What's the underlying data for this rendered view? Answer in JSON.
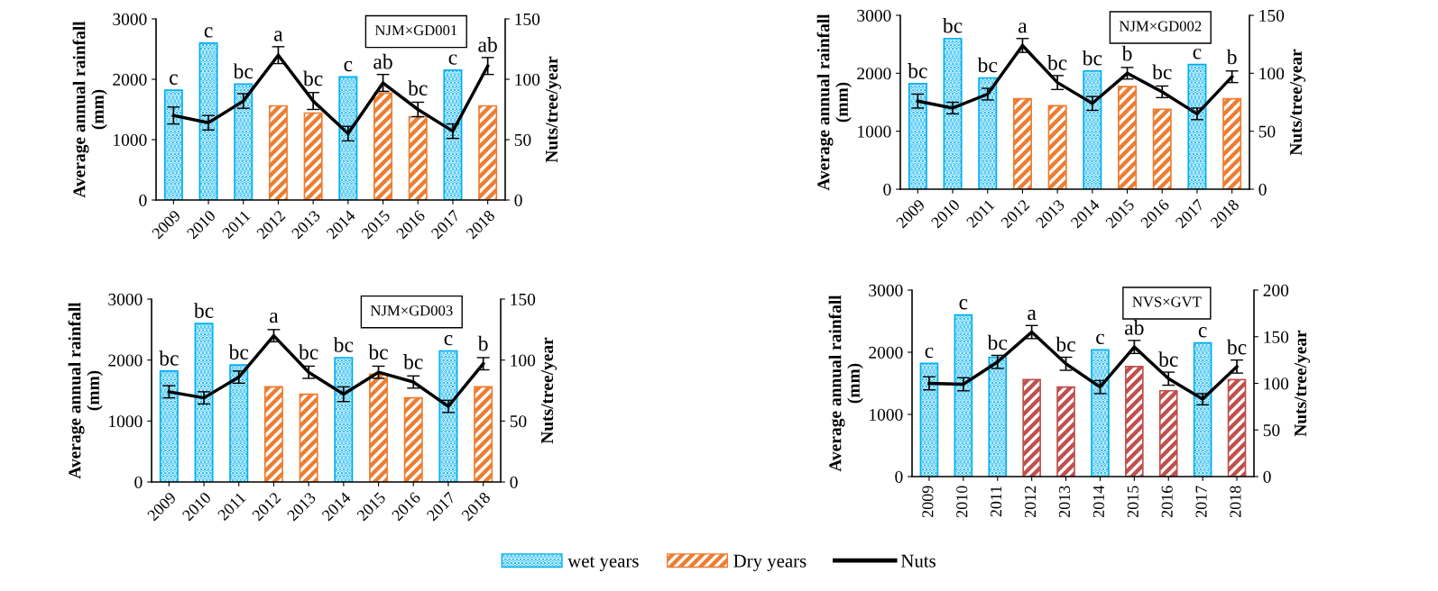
{
  "chart_data": [
    {
      "type": "bar",
      "title": "NJM×GD001",
      "categories": [
        "2009",
        "2010",
        "2011",
        "2012",
        "2013",
        "2014",
        "2015",
        "2016",
        "2017",
        "2018"
      ],
      "ylabel": "Average annual rainfall\n(mm)",
      "y2label": "Nuts/tree/year",
      "ylim": [
        0,
        3000
      ],
      "yticks": [
        0,
        1000,
        2000,
        3000
      ],
      "y2lim": [
        0,
        150
      ],
      "y2ticks": [
        0,
        50,
        100,
        150
      ],
      "legend": "bottom",
      "series": [
        {
          "name": "wet years",
          "color": "#00b0f0",
          "values": [
            1820,
            2600,
            1920,
            null,
            null,
            2040,
            null,
            null,
            2150,
            null
          ]
        },
        {
          "name": "Dry years",
          "color": "#ed7d31",
          "values": [
            null,
            null,
            null,
            1560,
            1440,
            null,
            1770,
            1380,
            null,
            1560
          ]
        },
        {
          "name": "Nuts",
          "type": "line",
          "axis": "y2",
          "color": "#000000",
          "values": [
            70,
            64,
            82,
            120,
            82,
            55,
            97,
            75,
            57,
            111
          ],
          "errors": [
            7,
            6,
            6,
            7,
            7,
            6,
            7,
            6,
            6,
            7
          ]
        }
      ],
      "annotations": [
        {
          "text": "c",
          "x": "2009",
          "y": 1820
        },
        {
          "text": "c",
          "x": "2010",
          "y": 2600
        },
        {
          "text": "bc",
          "x": "2011",
          "y": 1920
        },
        {
          "text": "a",
          "x": "2012",
          "y": 2540
        },
        {
          "text": "bc",
          "x": "2013",
          "y": 1800
        },
        {
          "text": "c",
          "x": "2014",
          "y": 2040
        },
        {
          "text": "ab",
          "x": "2015",
          "y": 2080
        },
        {
          "text": "bc",
          "x": "2016",
          "y": 1640
        },
        {
          "text": "c",
          "x": "2017",
          "y": 2150
        },
        {
          "text": "ab",
          "x": "2018",
          "y": 2360
        }
      ]
    },
    {
      "type": "bar",
      "title": "NJM×GD002",
      "categories": [
        "2009",
        "2010",
        "2011",
        "2012",
        "2013",
        "2014",
        "2015",
        "2016",
        "2017",
        "2018"
      ],
      "ylabel": "Average annual rainfall\n(mm)",
      "y2label": "Nuts/tree/year",
      "ylim": [
        0,
        3000
      ],
      "yticks": [
        0,
        1000,
        2000,
        3000
      ],
      "y2lim": [
        0,
        150
      ],
      "y2ticks": [
        0,
        50,
        100,
        150
      ],
      "series": [
        {
          "color": "#00b0f0",
          "values": [
            1820,
            2600,
            1920,
            null,
            null,
            2040,
            null,
            null,
            2150,
            null
          ]
        },
        {
          "color": "#ed7d31",
          "values": [
            null,
            null,
            null,
            1560,
            1440,
            null,
            1770,
            1380,
            null,
            1560
          ]
        },
        {
          "type": "line",
          "axis": "y2",
          "color": "#000000",
          "values": [
            76,
            70,
            82,
            124,
            92,
            74,
            100,
            84,
            65,
            97
          ],
          "errors": [
            6,
            5,
            5,
            6,
            6,
            6,
            5,
            5,
            5,
            5
          ]
        }
      ],
      "annotations": [
        {
          "text": "bc",
          "x": "2009",
          "y": 1820
        },
        {
          "text": "bc",
          "x": "2010",
          "y": 2600
        },
        {
          "text": "bc",
          "x": "2011",
          "y": 1920
        },
        {
          "text": "a",
          "x": "2012",
          "y": 2600
        },
        {
          "text": "bc",
          "x": "2013",
          "y": 1960
        },
        {
          "text": "bc",
          "x": "2014",
          "y": 2040
        },
        {
          "text": "b",
          "x": "2015",
          "y": 2120
        },
        {
          "text": "bc",
          "x": "2016",
          "y": 1800
        },
        {
          "text": "c",
          "x": "2017",
          "y": 2150
        },
        {
          "text": "b",
          "x": "2018",
          "y": 2060
        }
      ]
    },
    {
      "type": "bar",
      "title": "NJM×GD003",
      "categories": [
        "2009",
        "2010",
        "2011",
        "2012",
        "2013",
        "2014",
        "2015",
        "2016",
        "2017",
        "2018"
      ],
      "ylabel": "Average annual rainfall\n(mm)",
      "y2label": "Nuts/tree/year",
      "ylim": [
        0,
        3000
      ],
      "yticks": [
        0,
        1000,
        2000,
        3000
      ],
      "y2lim": [
        0,
        150
      ],
      "y2ticks": [
        0,
        50,
        100,
        150
      ],
      "series": [
        {
          "color": "#00b0f0",
          "values": [
            1820,
            2600,
            1920,
            null,
            null,
            2040,
            null,
            null,
            2150,
            null
          ]
        },
        {
          "color": "#ed7d31",
          "values": [
            null,
            null,
            null,
            1560,
            1440,
            null,
            1770,
            1380,
            null,
            1560
          ]
        },
        {
          "type": "line",
          "axis": "y2",
          "color": "#000000",
          "values": [
            74,
            69,
            86,
            120,
            90,
            72,
            90,
            82,
            62,
            97
          ],
          "errors": [
            5,
            5,
            5,
            5,
            5,
            6,
            5,
            5,
            5,
            5
          ]
        }
      ],
      "annotations": [
        {
          "text": "bc",
          "x": "2009",
          "y": 1820
        },
        {
          "text": "bc",
          "x": "2010",
          "y": 2600
        },
        {
          "text": "bc",
          "x": "2011",
          "y": 1920
        },
        {
          "text": "a",
          "x": "2012",
          "y": 2520
        },
        {
          "text": "bc",
          "x": "2013",
          "y": 1920
        },
        {
          "text": "bc",
          "x": "2014",
          "y": 2040
        },
        {
          "text": "bc",
          "x": "2015",
          "y": 1920
        },
        {
          "text": "bc",
          "x": "2016",
          "y": 1760
        },
        {
          "text": "c",
          "x": "2017",
          "y": 2150
        },
        {
          "text": "b",
          "x": "2018",
          "y": 2060
        }
      ]
    },
    {
      "type": "bar",
      "title": "NVS×GVT",
      "categories": [
        "2009",
        "2010",
        "2011",
        "2012",
        "2013",
        "2014",
        "2015",
        "2016",
        "2017",
        "2018"
      ],
      "ylabel": "Average annual rainfall\n(mm)",
      "y2label": "Nuts/tree/year",
      "ylim": [
        0,
        3000
      ],
      "yticks": [
        0,
        1000,
        2000,
        3000
      ],
      "y2lim": [
        0,
        200
      ],
      "y2ticks": [
        0,
        50,
        100,
        150,
        200
      ],
      "series": [
        {
          "color": "#00b0f0",
          "values": [
            1820,
            2600,
            1920,
            null,
            null,
            2040,
            null,
            null,
            2150,
            null
          ]
        },
        {
          "color": "#c0504d",
          "values": [
            null,
            null,
            null,
            1560,
            1440,
            null,
            1770,
            1380,
            null,
            1560
          ]
        },
        {
          "type": "line",
          "axis": "y2",
          "color": "#000000",
          "values": [
            100,
            99,
            123,
            155,
            121,
            96,
            139,
            105,
            83,
            118
          ],
          "errors": [
            7,
            7,
            7,
            7,
            7,
            7,
            7,
            7,
            6,
            7
          ]
        }
      ],
      "annotations": [
        {
          "text": "c",
          "x": "2009",
          "y": 1820
        },
        {
          "text": "c",
          "x": "2010",
          "y": 2600
        },
        {
          "text": "bc",
          "x": "2011",
          "y": 1950
        },
        {
          "text": "a",
          "x": "2012",
          "y": 2430
        },
        {
          "text": "bc",
          "x": "2013",
          "y": 1920
        },
        {
          "text": "c",
          "x": "2014",
          "y": 2040
        },
        {
          "text": "ab",
          "x": "2015",
          "y": 2190
        },
        {
          "text": "bc",
          "x": "2016",
          "y": 1680
        },
        {
          "text": "c",
          "x": "2017",
          "y": 2150
        },
        {
          "text": "bc",
          "x": "2018",
          "y": 1875
        }
      ]
    }
  ]
}
